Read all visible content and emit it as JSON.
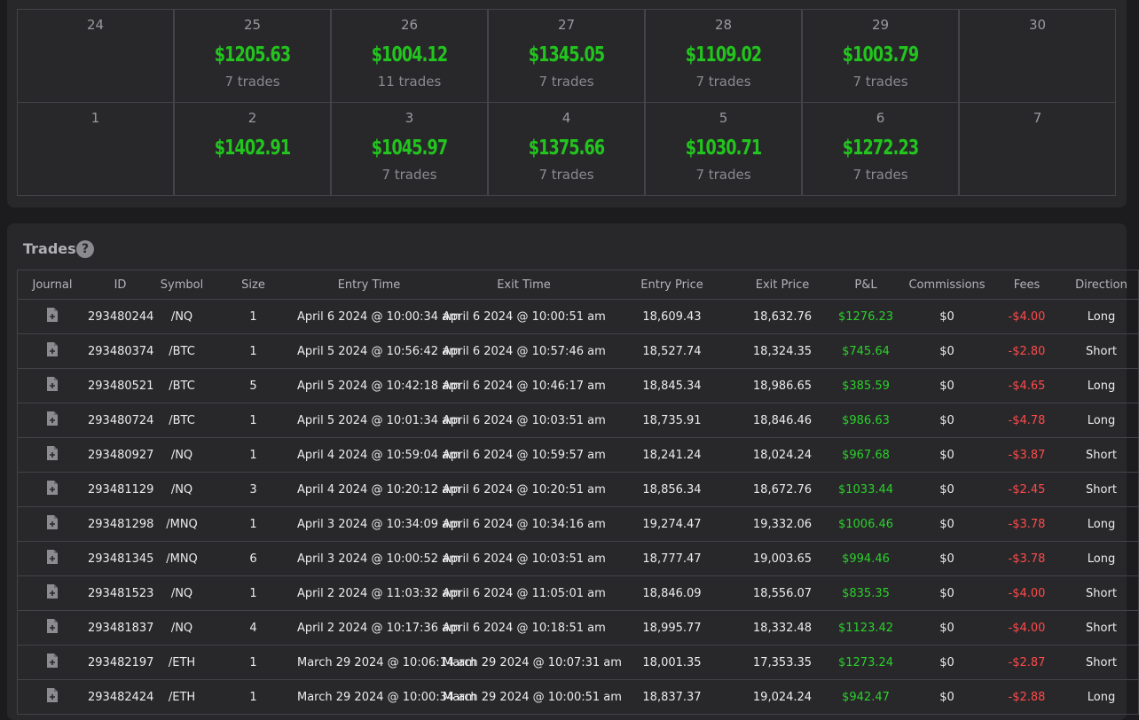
{
  "calendar": {
    "weeks": [
      [
        {
          "day": "24"
        },
        {
          "day": "25",
          "pnl": "$1205.63",
          "trades": "7 trades"
        },
        {
          "day": "26",
          "pnl": "$1004.12",
          "trades": "11 trades"
        },
        {
          "day": "27",
          "pnl": "$1345.05",
          "trades": "7 trades"
        },
        {
          "day": "28",
          "pnl": "$1109.02",
          "trades": "7 trades"
        },
        {
          "day": "29",
          "pnl": "$1003.79",
          "trades": "7 trades"
        },
        {
          "day": "30"
        }
      ],
      [
        {
          "day": "1"
        },
        {
          "day": "2",
          "pnl": "$1402.91"
        },
        {
          "day": "3",
          "pnl": "$1045.97",
          "trades": "7 trades"
        },
        {
          "day": "4",
          "pnl": "$1375.66",
          "trades": "7 trades"
        },
        {
          "day": "5",
          "pnl": "$1030.71",
          "trades": "7 trades"
        },
        {
          "day": "6",
          "pnl": "$1272.23",
          "trades": "7 trades"
        },
        {
          "day": "7"
        }
      ]
    ]
  },
  "trades": {
    "title": "Trades",
    "help": "?",
    "columns": [
      "Journal",
      "ID",
      "Symbol",
      "Size",
      "Entry Time",
      "Exit Time",
      "Entry Price",
      "Exit Price",
      "P&L",
      "Commissions",
      "Fees",
      "Direction"
    ],
    "rows": [
      [
        "293480244",
        "/NQ",
        "1",
        "April 6 2024 @ 10:00:34 am",
        "April 6 2024 @ 10:00:51 am",
        "18,609.43",
        "18,632.76",
        "$1276.23",
        "$0",
        "-$4.00",
        "Long"
      ],
      [
        "293480374",
        "/BTC",
        "1",
        "April 5 2024 @ 10:56:42 am",
        "April 6 2024 @ 10:57:46 am",
        "18,527.74",
        "18,324.35",
        "$745.64",
        "$0",
        "-$2.80",
        "Short"
      ],
      [
        "293480521",
        "/BTC",
        "5",
        "April 5 2024 @ 10:42:18 am",
        "April 6 2024 @ 10:46:17 am",
        "18,845.34",
        "18,986.65",
        "$385.59",
        "$0",
        "-$4.65",
        "Long"
      ],
      [
        "293480724",
        "/BTC",
        "1",
        "April 5 2024 @ 10:01:34 am",
        "April 6 2024 @ 10:03:51 am",
        "18,735.91",
        "18,846.46",
        "$986.63",
        "$0",
        "-$4.78",
        "Long"
      ],
      [
        "293480927",
        "/NQ",
        "1",
        "April 4 2024 @ 10:59:04 am",
        "April 6 2024 @ 10:59:57 am",
        "18,241.24",
        "18,024.24",
        "$967.68",
        "$0",
        "-$3.87",
        "Short"
      ],
      [
        "293481129",
        "/NQ",
        "3",
        "April 4 2024 @ 10:20:12 am",
        "April 6 2024 @ 10:20:51 am",
        "18,856.34",
        "18,672.76",
        "$1033.44",
        "$0",
        "-$2.45",
        "Short"
      ],
      [
        "293481298",
        "/MNQ",
        "1",
        "April 3 2024 @ 10:34:09 am",
        "April 6 2024 @ 10:34:16 am",
        "19,274.47",
        "19,332.06",
        "$1006.46",
        "$0",
        "-$3.78",
        "Long"
      ],
      [
        "293481345",
        "/MNQ",
        "6",
        "April 3 2024 @ 10:00:52 am",
        "April 6 2024 @ 10:03:51 am",
        "18,777.47",
        "19,003.65",
        "$994.46",
        "$0",
        "-$3.78",
        "Long"
      ],
      [
        "293481523",
        "/NQ",
        "1",
        "April 2 2024 @ 11:03:32 am",
        "April 6 2024 @ 11:05:01 am",
        "18,846.09",
        "18,556.07",
        "$835.35",
        "$0",
        "-$4.00",
        "Short"
      ],
      [
        "293481837",
        "/NQ",
        "4",
        "April 2 2024 @ 10:17:36 am",
        "April 6 2024 @ 10:18:51 am",
        "18,995.77",
        "18,332.48",
        "$1123.42",
        "$0",
        "-$4.00",
        "Short"
      ],
      [
        "293482197",
        "/ETH",
        "1",
        "March 29 2024 @ 10:06:14 am",
        "March 29 2024 @ 10:07:31 am",
        "18,001.35",
        "17,353.35",
        "$1273.24",
        "$0",
        "-$2.87",
        "Short"
      ],
      [
        "293482424",
        "/ETH",
        "1",
        "March 29 2024 @ 10:00:34 am",
        "March 29 2024 @ 10:00:51 am",
        "18,837.37",
        "19,024.24",
        "$942.47",
        "$0",
        "-$2.88",
        "Long"
      ]
    ]
  }
}
